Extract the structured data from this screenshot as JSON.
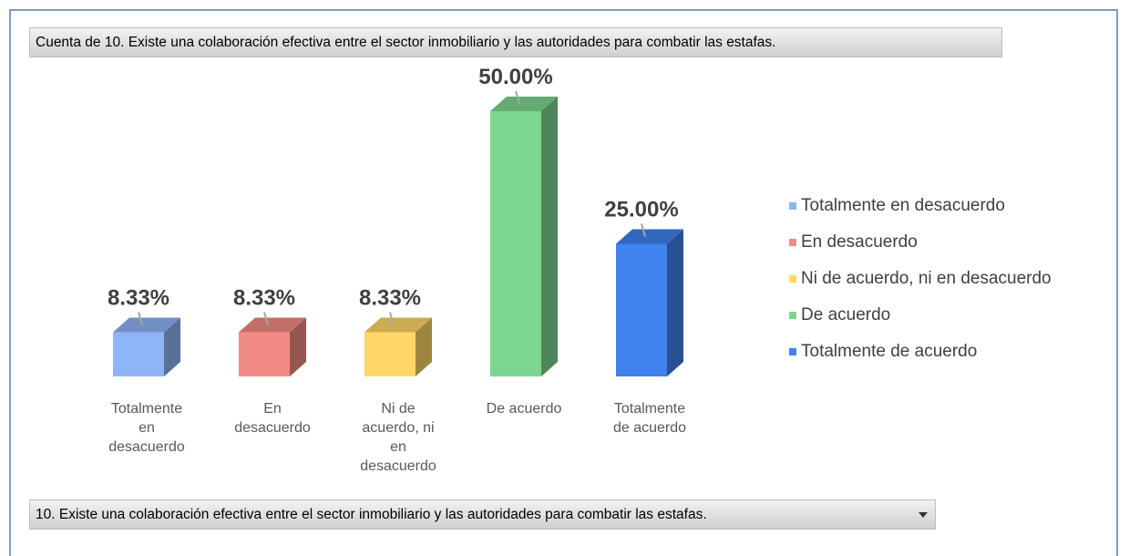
{
  "chart_data": {
    "type": "bar",
    "field_title": "Cuenta de 10. Existe una colaboración efectiva entre el sector inmobiliario y las autoridades para combatir las estafas.",
    "categories": [
      "Totalmente en desacuerdo",
      "En desacuerdo",
      "Ni de acuerdo, ni en desacuerdo",
      "De acuerdo",
      "Totalmente de acuerdo"
    ],
    "values": [
      8.33,
      8.33,
      8.33,
      50,
      25
    ],
    "value_labels": [
      "8.33%",
      "8.33%",
      "8.33%",
      "50.00%",
      "25.00%"
    ],
    "colors": [
      "#8fb4f7",
      "#f28b84",
      "#ffd766",
      "#7dd68f",
      "#3f83ef"
    ],
    "legend": "right",
    "filter_field": "10. Existe una colaboración efectiva entre el sector inmobiliario y las autoridades para combatir las estafas."
  }
}
